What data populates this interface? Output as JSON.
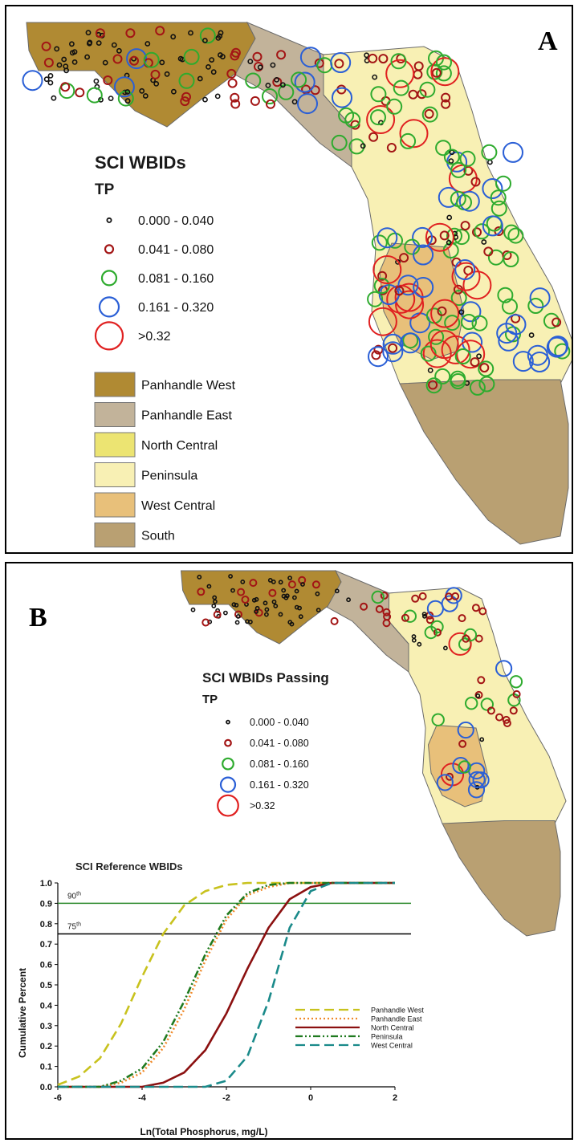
{
  "panel_a": {
    "label": "A",
    "legend_title": "SCI WBIDs",
    "legend_subtitle": "TP",
    "tp_classes": [
      {
        "label": "0.000 - 0.040",
        "color": "#111111"
      },
      {
        "label": "0.041 - 0.080",
        "color": "#a31515"
      },
      {
        "label": "0.081 - 0.160",
        "color": "#2eab2e"
      },
      {
        "label": "0.161 - 0.320",
        "color": "#2a5fd6"
      },
      {
        "label": ">0.32",
        "color": "#e02020"
      }
    ],
    "regions": [
      {
        "label": "Panhandle West",
        "color": "#b08a33"
      },
      {
        "label": "Panhandle East",
        "color": "#c2b39a"
      },
      {
        "label": "North Central",
        "color": "#ece472"
      },
      {
        "label": "Peninsula",
        "color": "#f8f0b4"
      },
      {
        "label": "West Central",
        "color": "#e8c07a"
      },
      {
        "label": "South",
        "color": "#b9a072"
      }
    ]
  },
  "panel_b": {
    "label": "B",
    "legend_title": "SCI WBIDs Passing",
    "legend_subtitle": "TP",
    "tp_classes": [
      {
        "label": "0.000 - 0.040",
        "color": "#111111"
      },
      {
        "label": "0.041 - 0.080",
        "color": "#a31515"
      },
      {
        "label": "0.081 - 0.160",
        "color": "#2eab2e"
      },
      {
        "label": "0.161 - 0.320",
        "color": "#2a5fd6"
      },
      {
        "label": ">0.32",
        "color": "#e02020"
      }
    ]
  },
  "chart_data": {
    "type": "line",
    "title": "SCI Reference WBIDs",
    "xlabel": "Ln(Total Phosphorus, mg/L)",
    "ylabel": "Cumulative Percent",
    "xlim": [
      -6,
      2
    ],
    "ylim": [
      0,
      1.0
    ],
    "xticks": [
      "-6",
      "-4",
      "-2",
      "0",
      "2"
    ],
    "yticks": [
      "0.0",
      "0.1",
      "0.2",
      "0.3",
      "0.4",
      "0.5",
      "0.6",
      "0.7",
      "0.8",
      "0.9",
      "1.0"
    ],
    "reference_lines": [
      {
        "label": "90th",
        "value": 0.9,
        "color": "#2e8b2e"
      },
      {
        "label": "75th",
        "value": 0.75,
        "color": "#000000"
      }
    ],
    "legend_position": "right",
    "series": [
      {
        "name": "Panhandle West",
        "color": "#c8c21e",
        "dash": "long-dash",
        "x": [
          -6,
          -5.5,
          -5,
          -4.5,
          -4,
          -3.5,
          -3,
          -2.5,
          -2,
          -1.5,
          -1,
          0,
          2
        ],
        "values": [
          0.01,
          0.05,
          0.14,
          0.31,
          0.54,
          0.75,
          0.89,
          0.96,
          0.99,
          1.0,
          1.0,
          1.0,
          1.0
        ]
      },
      {
        "name": "Panhandle East",
        "color": "#f08a2a",
        "dash": "dotted",
        "x": [
          -6,
          -5,
          -4.5,
          -4,
          -3.5,
          -3,
          -2.5,
          -2,
          -1.5,
          -1,
          -0.5,
          0,
          2
        ],
        "values": [
          0.0,
          0.0,
          0.02,
          0.07,
          0.19,
          0.38,
          0.62,
          0.82,
          0.94,
          0.98,
          1.0,
          1.0,
          1.0
        ]
      },
      {
        "name": "North Central",
        "color": "#8b1010",
        "dash": "solid",
        "x": [
          -6,
          -4,
          -3.5,
          -3,
          -2.5,
          -2,
          -1.5,
          -1,
          -0.5,
          0,
          0.5,
          2
        ],
        "values": [
          0.0,
          0.0,
          0.02,
          0.07,
          0.18,
          0.36,
          0.58,
          0.78,
          0.92,
          0.98,
          1.0,
          1.0
        ]
      },
      {
        "name": "Peninsula",
        "color": "#1f7a1f",
        "dash": "dash-dot-dot",
        "x": [
          -6,
          -5,
          -4.5,
          -4,
          -3.5,
          -3,
          -2.5,
          -2,
          -1.5,
          -1,
          -0.5,
          0,
          2
        ],
        "values": [
          0.0,
          0.0,
          0.03,
          0.09,
          0.22,
          0.42,
          0.65,
          0.84,
          0.95,
          0.99,
          1.0,
          1.0,
          1.0
        ]
      },
      {
        "name": "West Central",
        "color": "#1a8a8a",
        "dash": "long-dash",
        "x": [
          -6,
          -2.5,
          -2,
          -1.5,
          -1,
          -0.5,
          0,
          0.5,
          2
        ],
        "values": [
          0.0,
          0.0,
          0.03,
          0.15,
          0.42,
          0.78,
          0.96,
          1.0,
          1.0
        ]
      }
    ]
  }
}
